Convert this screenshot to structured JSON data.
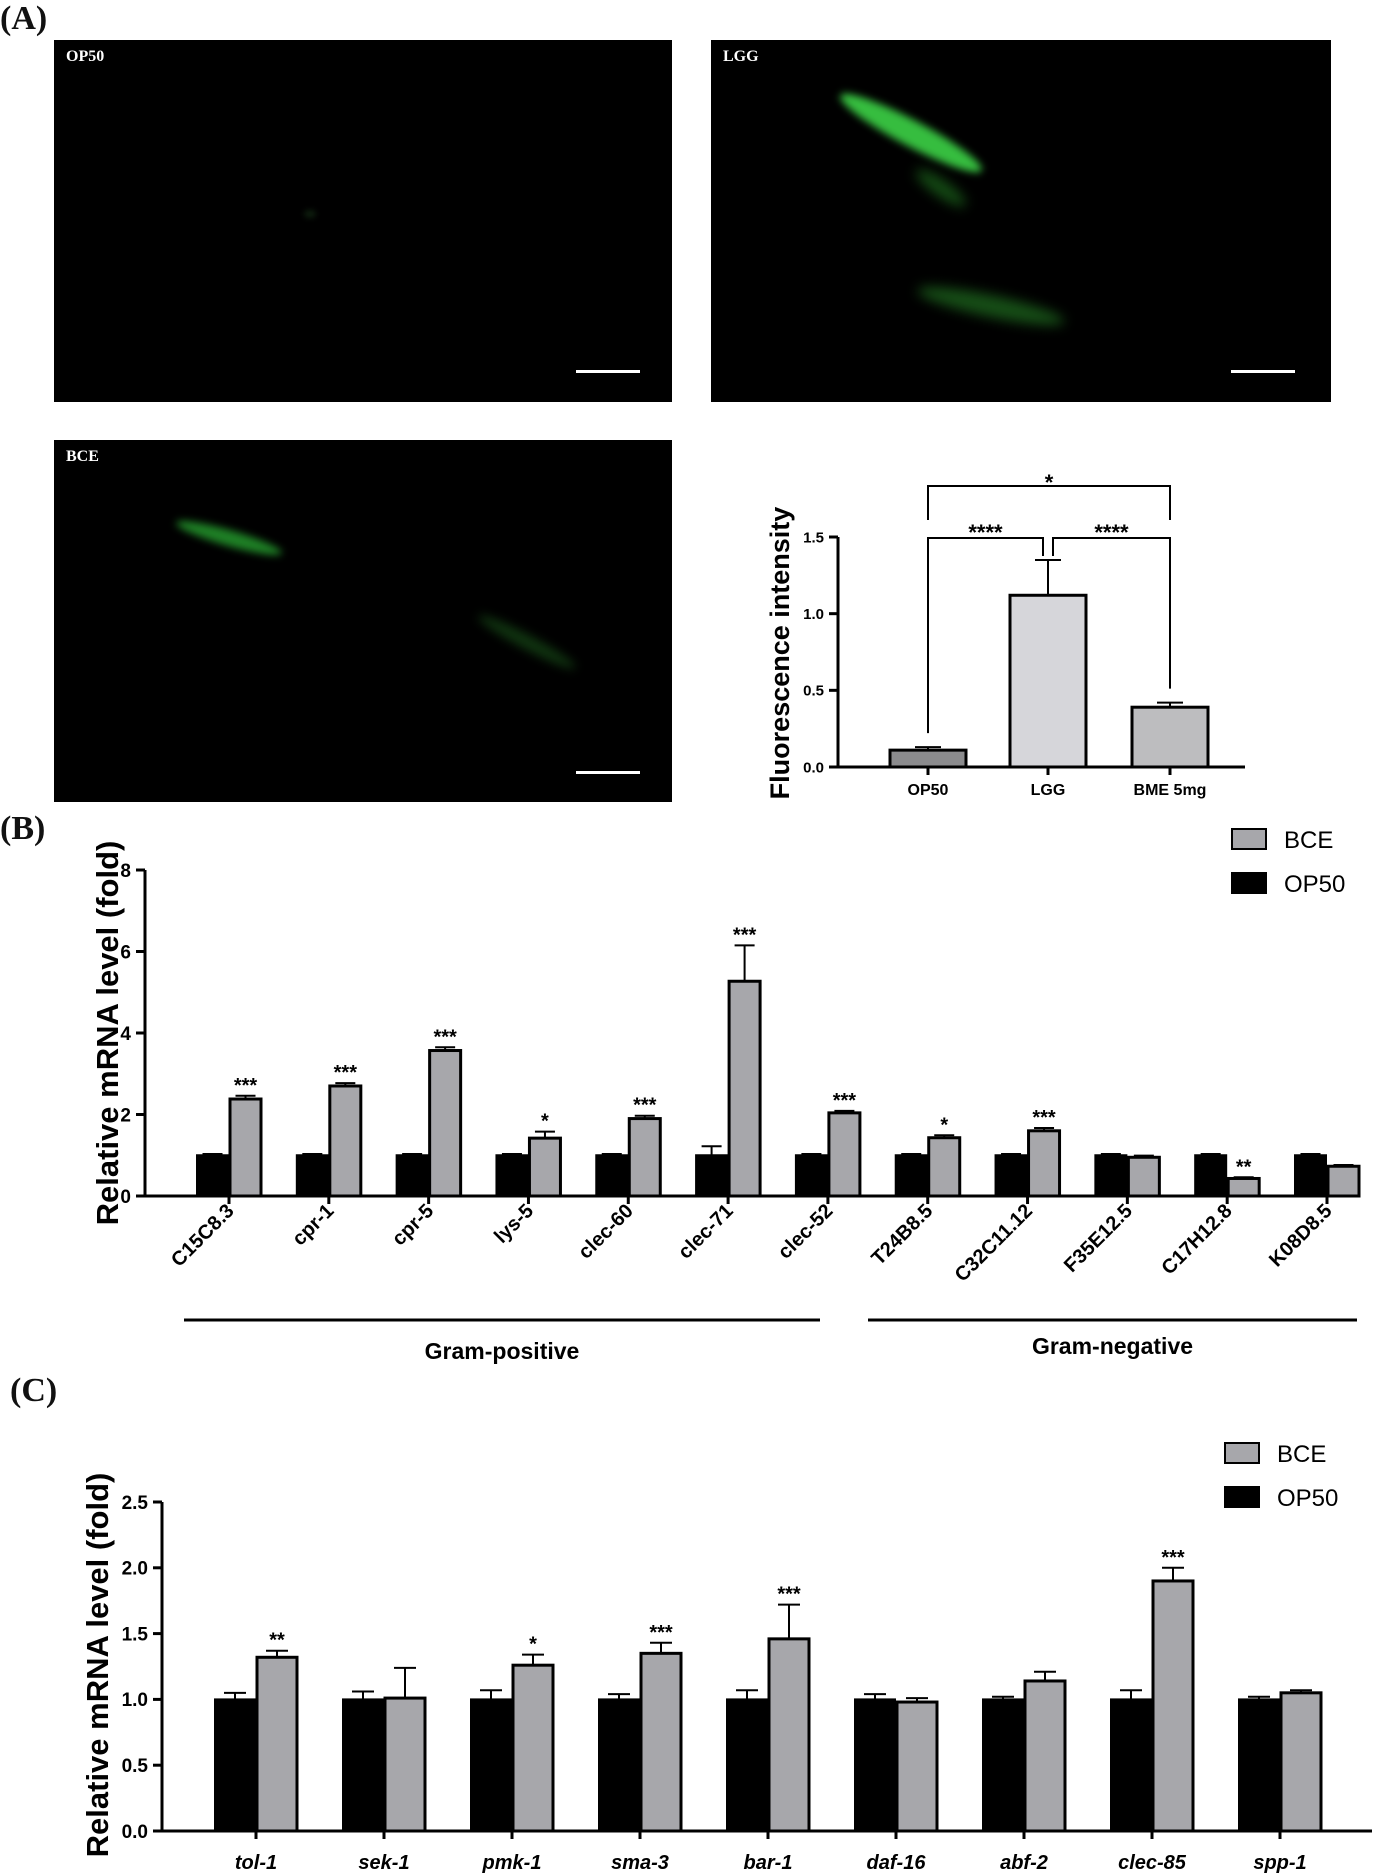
{
  "panel_a": {
    "letter": "(A)",
    "images": [
      {
        "label": "OP50",
        "fluorescence": "none"
      },
      {
        "label": "LGG",
        "fluorescence": "bright"
      },
      {
        "label": "BCE",
        "fluorescence": "dim"
      }
    ]
  },
  "panel_b": {
    "letter": "(B)"
  },
  "panel_c": {
    "letter": "(C)"
  },
  "colors": {
    "bce": "#a7a7ab",
    "op50": "#000000",
    "op50_bar": "#8b8b8d",
    "lgg_bar": "#d6d6da",
    "bme_bar": "#bdbdbf"
  },
  "chart_data": [
    {
      "id": "fluor",
      "type": "bar",
      "categories": [
        "OP50",
        "LGG",
        "BME 5mg"
      ],
      "values": [
        0.11,
        1.12,
        0.39
      ],
      "errors": [
        0.02,
        0.23,
        0.03
      ],
      "ylabel": "Fluorescence intensity",
      "ylim": [
        0,
        1.5
      ],
      "yticks": [
        0.0,
        0.5,
        1.0,
        1.5
      ],
      "significance": [
        {
          "from": "OP50",
          "to": "LGG",
          "label": "****"
        },
        {
          "from": "LGG",
          "to": "BME 5mg",
          "label": "****"
        },
        {
          "from": "OP50",
          "to": "BME 5mg",
          "label": "*"
        }
      ]
    },
    {
      "id": "grams",
      "type": "bar",
      "ylabel": "Relative mRNA level (fold)",
      "ylim": [
        0,
        8
      ],
      "yticks": [
        0,
        2,
        4,
        6,
        8
      ],
      "categories": [
        "C15C8.3",
        "cpr-1",
        "cpr-5",
        "lys-5",
        "clec-60",
        "clec-71",
        "clec-52",
        "T24B8.5",
        "C32C11.12",
        "F35E12.5",
        "C17H12.8",
        "K08D8.5"
      ],
      "series": [
        {
          "name": "OP50",
          "values": [
            1,
            1,
            1,
            1,
            1,
            1,
            1,
            1,
            1,
            1,
            1,
            1
          ],
          "errors": [
            0.03,
            0.03,
            0.03,
            0.03,
            0.03,
            0.22,
            0.03,
            0.03,
            0.03,
            0.03,
            0.03,
            0.03
          ]
        },
        {
          "name": "BCE",
          "values": [
            2.38,
            2.7,
            3.57,
            1.42,
            1.9,
            5.27,
            2.04,
            1.43,
            1.6,
            0.95,
            0.43,
            0.73
          ],
          "errors": [
            0.08,
            0.07,
            0.08,
            0.16,
            0.07,
            0.88,
            0.05,
            0.06,
            0.07,
            0.04,
            0.03,
            0.03
          ]
        }
      ],
      "significance": [
        "***",
        "***",
        "***",
        "*",
        "***",
        "***",
        "***",
        "*",
        "***",
        "",
        "**",
        ""
      ],
      "groups": [
        {
          "label": "Gram-positive",
          "start": 0,
          "end": 6
        },
        {
          "label": "Gram-negative",
          "start": 7,
          "end": 11
        }
      ],
      "legend": [
        "BCE",
        "OP50"
      ]
    },
    {
      "id": "pathway",
      "type": "bar",
      "ylabel": "Relative mRNA level (fold)",
      "ylim": [
        0,
        2.5
      ],
      "yticks": [
        0.0,
        0.5,
        1.0,
        1.5,
        2.0,
        2.5
      ],
      "categories": [
        "tol-1",
        "sek-1",
        "pmk-1",
        "sma-3",
        "bar-1",
        "daf-16",
        "abf-2",
        "clec-85",
        "spp-1"
      ],
      "series": [
        {
          "name": "OP50",
          "values": [
            1,
            1,
            1,
            1,
            1,
            1,
            1,
            1,
            1
          ],
          "errors": [
            0.05,
            0.06,
            0.07,
            0.04,
            0.07,
            0.04,
            0.02,
            0.07,
            0.02
          ]
        },
        {
          "name": "BCE",
          "values": [
            1.32,
            1.01,
            1.26,
            1.35,
            1.46,
            0.98,
            1.14,
            1.9,
            1.05
          ],
          "errors": [
            0.05,
            0.23,
            0.08,
            0.08,
            0.26,
            0.03,
            0.07,
            0.1,
            0.02
          ]
        }
      ],
      "significance": [
        "**",
        "",
        "*",
        "***",
        "***",
        "",
        "",
        "***",
        ""
      ],
      "legend": [
        "BCE",
        "OP50"
      ]
    }
  ]
}
